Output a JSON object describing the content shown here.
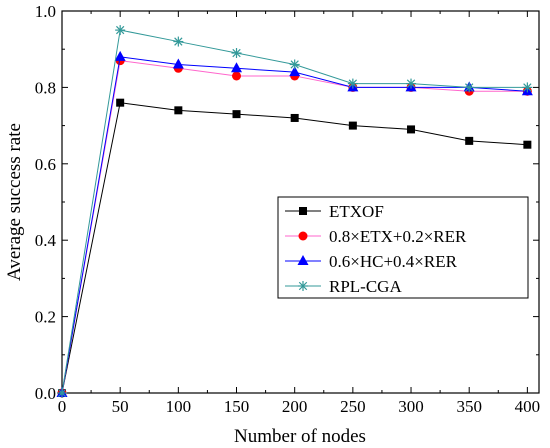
{
  "chart_data": {
    "type": "line",
    "xlabel": "Number of nodes",
    "ylabel": "Average success rate",
    "xlim": [
      0,
      410
    ],
    "ylim": [
      0.0,
      1.0
    ],
    "xticks": [
      0,
      50,
      100,
      150,
      200,
      250,
      300,
      350,
      400
    ],
    "yticks": [
      0.0,
      0.2,
      0.4,
      0.6,
      0.8,
      1.0
    ],
    "xtick_labels": [
      "0",
      "50",
      "100",
      "150",
      "200",
      "250",
      "300",
      "350",
      "400"
    ],
    "ytick_labels": [
      "0.0",
      "0.2",
      "0.4",
      "0.6",
      "0.8",
      "1.0"
    ],
    "x": [
      0,
      50,
      100,
      150,
      200,
      250,
      300,
      350,
      400
    ],
    "grid": false,
    "legend_position": "bottom-right",
    "series": [
      {
        "name": "ETXOF",
        "color": "#000000",
        "marker": "square",
        "values": [
          0,
          0.76,
          0.74,
          0.73,
          0.72,
          0.7,
          0.69,
          0.66,
          0.65
        ]
      },
      {
        "name": "0.8×ETX+0.2×RER",
        "color": "#ff0000",
        "line_color": "#ff66cc",
        "marker": "circle",
        "values": [
          0,
          0.87,
          0.85,
          0.83,
          0.83,
          0.8,
          0.8,
          0.79,
          0.79
        ]
      },
      {
        "name": "0.6×HC+0.4×RER",
        "color": "#0000ff",
        "line_color": "#0000ff",
        "marker": "triangle",
        "values": [
          0,
          0.88,
          0.86,
          0.85,
          0.84,
          0.8,
          0.8,
          0.8,
          0.79
        ]
      },
      {
        "name": "RPL-CGA",
        "color": "#339999",
        "line_color": "#339999",
        "marker": "star",
        "values": [
          0,
          0.95,
          0.92,
          0.89,
          0.86,
          0.81,
          0.81,
          0.8,
          0.8
        ]
      }
    ]
  }
}
